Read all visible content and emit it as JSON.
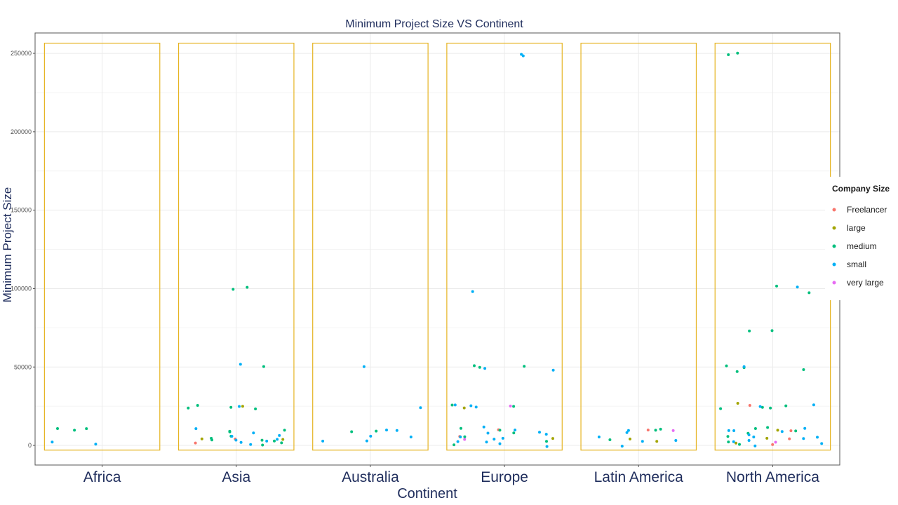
{
  "colors": {
    "Freelancer": "#F8766D",
    "large": "#A3A500",
    "medium": "#00BF7D",
    "small": "#00B0F6",
    "very large": "#E76BF3",
    "box": "#E6B422",
    "axis_text": "#1f2d5c"
  },
  "chart_data": {
    "type": "scatter",
    "title": "Minimum Project Size VS Continent",
    "xlabel": "Continent",
    "ylabel": "Minimum Project Size",
    "categories": [
      "Africa",
      "Asia",
      "Australia",
      "Europe",
      "Latin America",
      "North America"
    ],
    "yticks": [
      0,
      50000,
      100000,
      150000,
      200000,
      250000
    ],
    "ylim": [
      -12500,
      263000
    ],
    "grid": true,
    "legend": {
      "title": "Company Size",
      "position": "right",
      "entries": [
        "Freelancer",
        "large",
        "medium",
        "small",
        "very large"
      ]
    },
    "series": [
      {
        "name": "Freelancer",
        "points": [
          [
            "Asia",
            4000
          ],
          [
            "Asia",
            2000
          ],
          [
            "Europe",
            10000
          ],
          [
            "Europe",
            5000
          ],
          [
            "Latin America",
            10000
          ],
          [
            "North America",
            25000
          ],
          [
            "North America",
            5000
          ],
          [
            "North America",
            1000
          ],
          [
            "North America",
            10000
          ]
        ]
      },
      {
        "name": "large",
        "points": [
          [
            "Asia",
            25000
          ],
          [
            "Asia",
            5000
          ],
          [
            "Asia",
            3000
          ],
          [
            "Europe",
            24000
          ],
          [
            "Europe",
            5000
          ],
          [
            "Latin America",
            4000
          ],
          [
            "Latin America",
            3000
          ],
          [
            "North America",
            26000
          ],
          [
            "North America",
            5000
          ],
          [
            "North America",
            10000
          ],
          [
            "North America",
            1000
          ]
        ]
      },
      {
        "name": "medium",
        "points": [
          [
            "Africa",
            11000
          ],
          [
            "Africa",
            10000
          ],
          [
            "Africa",
            9000
          ],
          [
            "Asia",
            100000
          ],
          [
            "Asia",
            101000
          ],
          [
            "Asia",
            50000
          ],
          [
            "Asia",
            26000
          ],
          [
            "Asia",
            25000
          ],
          [
            "Asia",
            24000
          ],
          [
            "Asia",
            23000
          ],
          [
            "Asia",
            10000
          ],
          [
            "Asia",
            9000
          ],
          [
            "Asia",
            8000
          ],
          [
            "Asia",
            6000
          ],
          [
            "Asia",
            5000
          ],
          [
            "Asia",
            4000
          ],
          [
            "Asia",
            3000
          ],
          [
            "Asia",
            2000
          ],
          [
            "Asia",
            1000
          ],
          [
            "Asia",
            0
          ],
          [
            "Australia",
            10000
          ],
          [
            "Australia",
            9000
          ],
          [
            "Europe",
            51000
          ],
          [
            "Europe",
            50000
          ],
          [
            "Europe",
            49000
          ],
          [
            "Europe",
            26000
          ],
          [
            "Europe",
            25000
          ],
          [
            "Europe",
            10000
          ],
          [
            "Europe",
            9000
          ],
          [
            "Europe",
            8000
          ],
          [
            "Europe",
            5000
          ],
          [
            "Europe",
            3000
          ],
          [
            "Europe",
            1000
          ],
          [
            "Latin America",
            10000
          ],
          [
            "Latin America",
            9000
          ],
          [
            "Latin America",
            3000
          ],
          [
            "North America",
            251000
          ],
          [
            "North America",
            250000
          ],
          [
            "North America",
            101000
          ],
          [
            "North America",
            98000
          ],
          [
            "North America",
            74000
          ],
          [
            "North America",
            73000
          ],
          [
            "North America",
            51000
          ],
          [
            "North America",
            50000
          ],
          [
            "North America",
            49000
          ],
          [
            "North America",
            48000
          ],
          [
            "North America",
            26000
          ],
          [
            "North America",
            25000
          ],
          [
            "North America",
            24000
          ],
          [
            "North America",
            23000
          ],
          [
            "North America",
            11000
          ],
          [
            "North America",
            10000
          ],
          [
            "North America",
            9000
          ],
          [
            "North America",
            8000
          ],
          [
            "North America",
            5000
          ],
          [
            "North America",
            3000
          ],
          [
            "North America",
            1000
          ]
        ]
      },
      {
        "name": "small",
        "points": [
          [
            "Africa",
            2000
          ],
          [
            "Africa",
            1000
          ],
          [
            "Asia",
            51000
          ],
          [
            "Asia",
            25000
          ],
          [
            "Asia",
            10000
          ],
          [
            "Asia",
            8000
          ],
          [
            "Asia",
            6000
          ],
          [
            "Asia",
            5000
          ],
          [
            "Asia",
            4000
          ],
          [
            "Asia",
            3000
          ],
          [
            "Asia",
            2000
          ],
          [
            "Asia",
            1000
          ],
          [
            "Asia",
            0
          ],
          [
            "Australia",
            51000
          ],
          [
            "Australia",
            24000
          ],
          [
            "Australia",
            10000
          ],
          [
            "Australia",
            9000
          ],
          [
            "Australia",
            6000
          ],
          [
            "Australia",
            5000
          ],
          [
            "Australia",
            3000
          ],
          [
            "Australia",
            2000
          ],
          [
            "Europe",
            250000
          ],
          [
            "Europe",
            249000
          ],
          [
            "Europe",
            98000
          ],
          [
            "Europe",
            50000
          ],
          [
            "Europe",
            48000
          ],
          [
            "Europe",
            26000
          ],
          [
            "Europe",
            25000
          ],
          [
            "Europe",
            24000
          ],
          [
            "Europe",
            11000
          ],
          [
            "Europe",
            10000
          ],
          [
            "Europe",
            9000
          ],
          [
            "Europe",
            8000
          ],
          [
            "Europe",
            7000
          ],
          [
            "Europe",
            6000
          ],
          [
            "Europe",
            5000
          ],
          [
            "Europe",
            4000
          ],
          [
            "Europe",
            3000
          ],
          [
            "Europe",
            2000
          ],
          [
            "Europe",
            1000
          ],
          [
            "Europe",
            0
          ],
          [
            "Latin America",
            10000
          ],
          [
            "Latin America",
            9000
          ],
          [
            "Latin America",
            5000
          ],
          [
            "Latin America",
            4000
          ],
          [
            "Latin America",
            3000
          ],
          [
            "Latin America",
            0
          ],
          [
            "North America",
            101000
          ],
          [
            "North America",
            50000
          ],
          [
            "North America",
            25000
          ],
          [
            "North America",
            24000
          ],
          [
            "North America",
            11000
          ],
          [
            "North America",
            10000
          ],
          [
            "North America",
            9000
          ],
          [
            "North America",
            8000
          ],
          [
            "North America",
            7000
          ],
          [
            "North America",
            6000
          ],
          [
            "North America",
            5000
          ],
          [
            "North America",
            4000
          ],
          [
            "North America",
            3000
          ],
          [
            "North America",
            2000
          ],
          [
            "North America",
            1000
          ],
          [
            "North America",
            0
          ]
        ]
      },
      {
        "name": "very large",
        "points": [
          [
            "Europe",
            25000
          ],
          [
            "Europe",
            4000
          ],
          [
            "Latin America",
            9000
          ],
          [
            "North America",
            2000
          ]
        ]
      }
    ]
  }
}
